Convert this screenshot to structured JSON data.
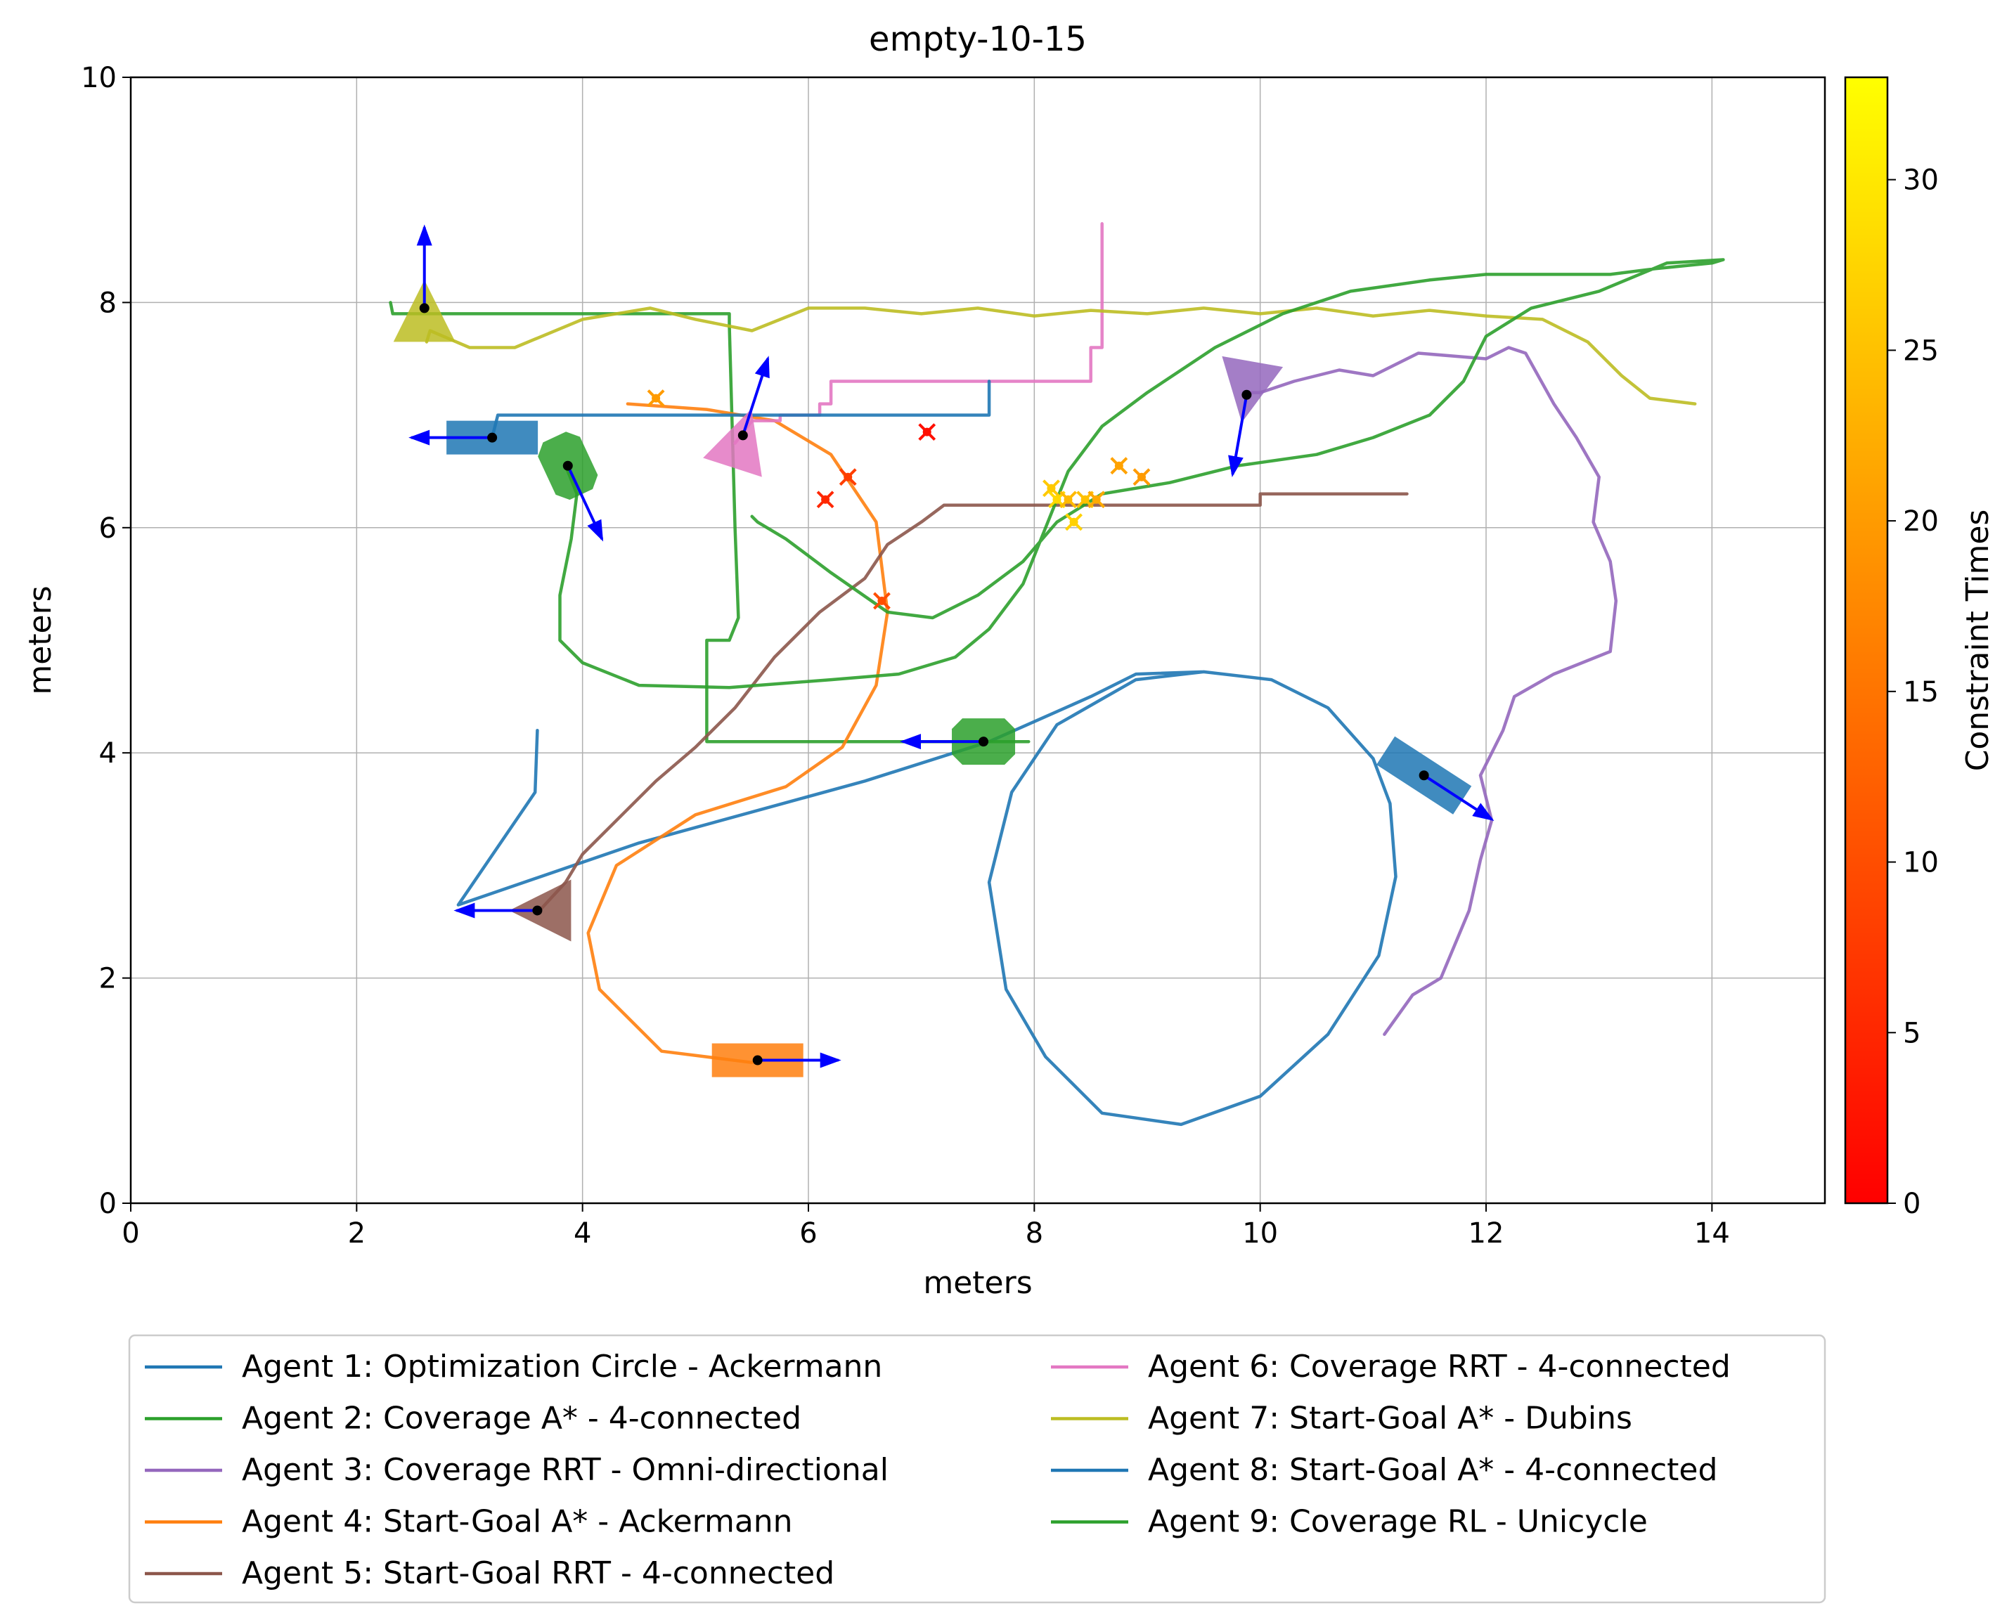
{
  "chart_data": {
    "type": "line",
    "title": "empty-10-15",
    "xlabel": "meters",
    "ylabel": "meters",
    "xlim": [
      0,
      15
    ],
    "ylim": [
      0,
      10
    ],
    "xticks": [
      "0",
      "2",
      "4",
      "6",
      "8",
      "10",
      "12",
      "14"
    ],
    "yticks": [
      "0",
      "2",
      "4",
      "6",
      "8",
      "10"
    ],
    "grid": true,
    "legend_position": "bottom",
    "colorbar": {
      "label": "Constraint Times",
      "range": [
        0,
        33
      ],
      "ticks": [
        "0",
        "5",
        "10",
        "15",
        "20",
        "25",
        "30"
      ],
      "colormap": [
        "#ff0000",
        "#ff8000",
        "#ffff00"
      ]
    },
    "series": [
      {
        "name": "Agent 1: Optimization Circle - Ackermann",
        "color": "#1f77b4",
        "points": [
          [
            3.6,
            4.2
          ],
          [
            3.58,
            3.65
          ],
          [
            2.9,
            2.65
          ],
          [
            4.5,
            3.2
          ],
          [
            6.5,
            3.75
          ],
          [
            7.6,
            4.1
          ],
          [
            8.5,
            4.5
          ],
          [
            8.9,
            4.7
          ],
          [
            9.5,
            4.72
          ],
          [
            10.1,
            4.65
          ],
          [
            10.6,
            4.4
          ],
          [
            11.0,
            3.95
          ],
          [
            11.15,
            3.55
          ],
          [
            11.2,
            2.9
          ],
          [
            11.05,
            2.2
          ],
          [
            10.6,
            1.5
          ],
          [
            10.0,
            0.95
          ],
          [
            9.3,
            0.7
          ],
          [
            8.6,
            0.8
          ],
          [
            8.1,
            1.3
          ],
          [
            7.75,
            1.9
          ],
          [
            7.6,
            2.85
          ],
          [
            7.8,
            3.65
          ],
          [
            8.2,
            4.25
          ],
          [
            8.9,
            4.65
          ],
          [
            9.5,
            4.72
          ]
        ],
        "vehicle": {
          "x": 3.2,
          "y": 6.8,
          "heading_deg": 180
        }
      },
      {
        "name": "Agent 2: Coverage A* - 4-connected",
        "color": "#2ca02c",
        "points": [
          [
            2.3,
            8.0
          ],
          [
            2.32,
            7.9
          ],
          [
            5.3,
            7.9
          ],
          [
            5.3,
            7.8
          ],
          [
            5.35,
            6.0
          ],
          [
            5.38,
            5.2
          ],
          [
            5.3,
            5.0
          ],
          [
            5.1,
            5.0
          ],
          [
            5.1,
            4.1
          ],
          [
            7.6,
            4.1
          ],
          [
            7.95,
            4.1
          ]
        ],
        "vehicle": {
          "x": 7.55,
          "y": 4.1,
          "heading_deg": 180
        }
      },
      {
        "name": "Agent 3: Coverage RRT - Omni-directional",
        "color": "#9467bd",
        "points": [
          [
            11.1,
            1.5
          ],
          [
            11.35,
            1.85
          ],
          [
            11.6,
            2.0
          ],
          [
            11.85,
            2.6
          ],
          [
            11.95,
            3.05
          ],
          [
            12.05,
            3.4
          ],
          [
            11.95,
            3.8
          ],
          [
            12.15,
            4.2
          ],
          [
            12.25,
            4.5
          ],
          [
            12.6,
            4.7
          ],
          [
            13.1,
            4.9
          ],
          [
            13.15,
            5.35
          ],
          [
            13.1,
            5.7
          ],
          [
            12.95,
            6.05
          ],
          [
            13.0,
            6.45
          ],
          [
            12.8,
            6.8
          ],
          [
            12.6,
            7.1
          ],
          [
            12.35,
            7.55
          ],
          [
            12.2,
            7.6
          ],
          [
            12.0,
            7.5
          ],
          [
            11.4,
            7.55
          ],
          [
            11.0,
            7.35
          ],
          [
            10.7,
            7.4
          ],
          [
            10.3,
            7.3
          ],
          [
            10.0,
            7.2
          ],
          [
            9.85,
            7.2
          ]
        ],
        "vehicle": {
          "x": 9.88,
          "y": 7.18,
          "heading_deg": -100
        }
      },
      {
        "name": "Agent 4: Start-Goal A* - Ackermann",
        "color": "#ff7f0e",
        "points": [
          [
            4.4,
            7.1
          ],
          [
            5.1,
            7.05
          ],
          [
            5.7,
            6.95
          ],
          [
            6.2,
            6.65
          ],
          [
            6.6,
            6.05
          ],
          [
            6.7,
            5.25
          ],
          [
            6.6,
            4.6
          ],
          [
            6.3,
            4.05
          ],
          [
            5.8,
            3.7
          ],
          [
            5.0,
            3.45
          ],
          [
            4.3,
            3.0
          ],
          [
            4.05,
            2.4
          ],
          [
            4.15,
            1.9
          ],
          [
            4.7,
            1.35
          ],
          [
            5.5,
            1.25
          ]
        ],
        "vehicle": {
          "x": 5.55,
          "y": 1.27,
          "heading_deg": 0
        }
      },
      {
        "name": "Agent 5: Start-Goal RRT - 4-connected",
        "color": "#8c564b",
        "points": [
          [
            3.62,
            2.6
          ],
          [
            3.85,
            2.85
          ],
          [
            4.0,
            3.1
          ],
          [
            4.3,
            3.4
          ],
          [
            4.65,
            3.75
          ],
          [
            5.0,
            4.05
          ],
          [
            5.35,
            4.4
          ],
          [
            5.7,
            4.85
          ],
          [
            6.1,
            5.25
          ],
          [
            6.5,
            5.55
          ],
          [
            6.7,
            5.85
          ],
          [
            7.0,
            6.05
          ],
          [
            7.2,
            6.2
          ],
          [
            10.0,
            6.2
          ],
          [
            10.0,
            6.3
          ],
          [
            11.3,
            6.3
          ]
        ],
        "vehicle": {
          "x": 3.6,
          "y": 2.6,
          "heading_deg": 180
        }
      },
      {
        "name": "Agent 6: Coverage RRT - 4-connected",
        "color": "#e377c2",
        "points": [
          [
            5.35,
            6.75
          ],
          [
            5.5,
            6.95
          ],
          [
            5.75,
            6.95
          ],
          [
            5.75,
            7.0
          ],
          [
            6.1,
            7.0
          ],
          [
            6.1,
            7.1
          ],
          [
            6.2,
            7.1
          ],
          [
            6.2,
            7.3
          ],
          [
            8.5,
            7.3
          ],
          [
            8.5,
            7.6
          ],
          [
            8.6,
            7.6
          ],
          [
            8.6,
            8.7
          ]
        ],
        "vehicle": {
          "x": 5.42,
          "y": 6.82,
          "heading_deg": 72
        }
      },
      {
        "name": "Agent 7: Start-Goal A* - Dubins",
        "color": "#bcbd22",
        "points": [
          [
            2.62,
            7.65
          ],
          [
            2.65,
            7.75
          ],
          [
            3.0,
            7.6
          ],
          [
            3.4,
            7.6
          ],
          [
            4.0,
            7.85
          ],
          [
            4.6,
            7.95
          ],
          [
            5.0,
            7.85
          ],
          [
            5.5,
            7.75
          ],
          [
            6.0,
            7.95
          ],
          [
            6.5,
            7.95
          ],
          [
            7.0,
            7.9
          ],
          [
            7.5,
            7.95
          ],
          [
            8.0,
            7.88
          ],
          [
            8.5,
            7.93
          ],
          [
            9.0,
            7.9
          ],
          [
            9.5,
            7.95
          ],
          [
            10.0,
            7.9
          ],
          [
            10.5,
            7.95
          ],
          [
            11.0,
            7.88
          ],
          [
            11.5,
            7.93
          ],
          [
            12.0,
            7.88
          ],
          [
            12.5,
            7.85
          ],
          [
            12.9,
            7.65
          ],
          [
            13.2,
            7.35
          ],
          [
            13.45,
            7.15
          ],
          [
            13.85,
            7.1
          ]
        ],
        "vehicle": {
          "x": 2.6,
          "y": 7.95,
          "heading_deg": 90
        }
      },
      {
        "name": "Agent 8: Start-Goal A* - 4-connected",
        "color": "#1f77b4",
        "points": [
          [
            3.2,
            6.8
          ],
          [
            3.25,
            7.0
          ],
          [
            7.6,
            7.0
          ],
          [
            7.6,
            7.3
          ]
        ],
        "vehicle": {
          "x": 11.45,
          "y": 3.8,
          "heading_deg": -33
        }
      },
      {
        "name": "Agent 9: Coverage RL - Unicycle",
        "color": "#2ca02c",
        "points": [
          [
            3.85,
            6.55
          ],
          [
            3.95,
            6.3
          ],
          [
            3.9,
            5.9
          ],
          [
            3.8,
            5.4
          ],
          [
            3.8,
            5.0
          ],
          [
            4.0,
            4.8
          ],
          [
            4.5,
            4.6
          ],
          [
            5.3,
            4.58
          ],
          [
            6.2,
            4.65
          ],
          [
            6.8,
            4.7
          ],
          [
            7.3,
            4.85
          ],
          [
            7.6,
            5.1
          ],
          [
            7.9,
            5.5
          ],
          [
            8.1,
            6.0
          ],
          [
            8.3,
            6.5
          ],
          [
            8.6,
            6.9
          ],
          [
            9.0,
            7.2
          ],
          [
            9.6,
            7.6
          ],
          [
            10.2,
            7.9
          ],
          [
            10.8,
            8.1
          ],
          [
            11.5,
            8.2
          ],
          [
            12.0,
            8.25
          ],
          [
            12.6,
            8.25
          ],
          [
            13.1,
            8.25
          ],
          [
            13.5,
            8.3
          ],
          [
            14.0,
            8.35
          ],
          [
            14.1,
            8.38
          ],
          [
            13.6,
            8.35
          ],
          [
            13.0,
            8.1
          ],
          [
            12.4,
            7.95
          ],
          [
            12.0,
            7.7
          ],
          [
            11.8,
            7.3
          ],
          [
            11.5,
            7.0
          ],
          [
            11.0,
            6.8
          ],
          [
            10.5,
            6.65
          ],
          [
            9.8,
            6.55
          ],
          [
            9.2,
            6.4
          ],
          [
            8.6,
            6.3
          ],
          [
            8.2,
            6.05
          ],
          [
            7.9,
            5.7
          ],
          [
            7.5,
            5.4
          ],
          [
            7.1,
            5.2
          ],
          [
            6.7,
            5.25
          ],
          [
            6.2,
            5.6
          ],
          [
            5.8,
            5.9
          ],
          [
            5.55,
            6.05
          ],
          [
            5.5,
            6.1
          ]
        ],
        "vehicle": {
          "x": 3.87,
          "y": 6.55,
          "heading_deg": -65
        }
      }
    ],
    "constraints": [
      {
        "x": 4.65,
        "y": 7.15,
        "t": 20
      },
      {
        "x": 6.15,
        "y": 6.25,
        "t": 5
      },
      {
        "x": 6.35,
        "y": 6.45,
        "t": 8
      },
      {
        "x": 7.05,
        "y": 6.85,
        "t": 2
      },
      {
        "x": 6.65,
        "y": 5.35,
        "t": 10
      },
      {
        "x": 8.15,
        "y": 6.35,
        "t": 26
      },
      {
        "x": 8.2,
        "y": 6.25,
        "t": 28
      },
      {
        "x": 8.3,
        "y": 6.25,
        "t": 24
      },
      {
        "x": 8.35,
        "y": 6.05,
        "t": 27
      },
      {
        "x": 8.45,
        "y": 6.25,
        "t": 25
      },
      {
        "x": 8.55,
        "y": 6.25,
        "t": 22
      },
      {
        "x": 8.75,
        "y": 6.55,
        "t": 21
      },
      {
        "x": 8.95,
        "y": 6.45,
        "t": 20
      }
    ]
  }
}
